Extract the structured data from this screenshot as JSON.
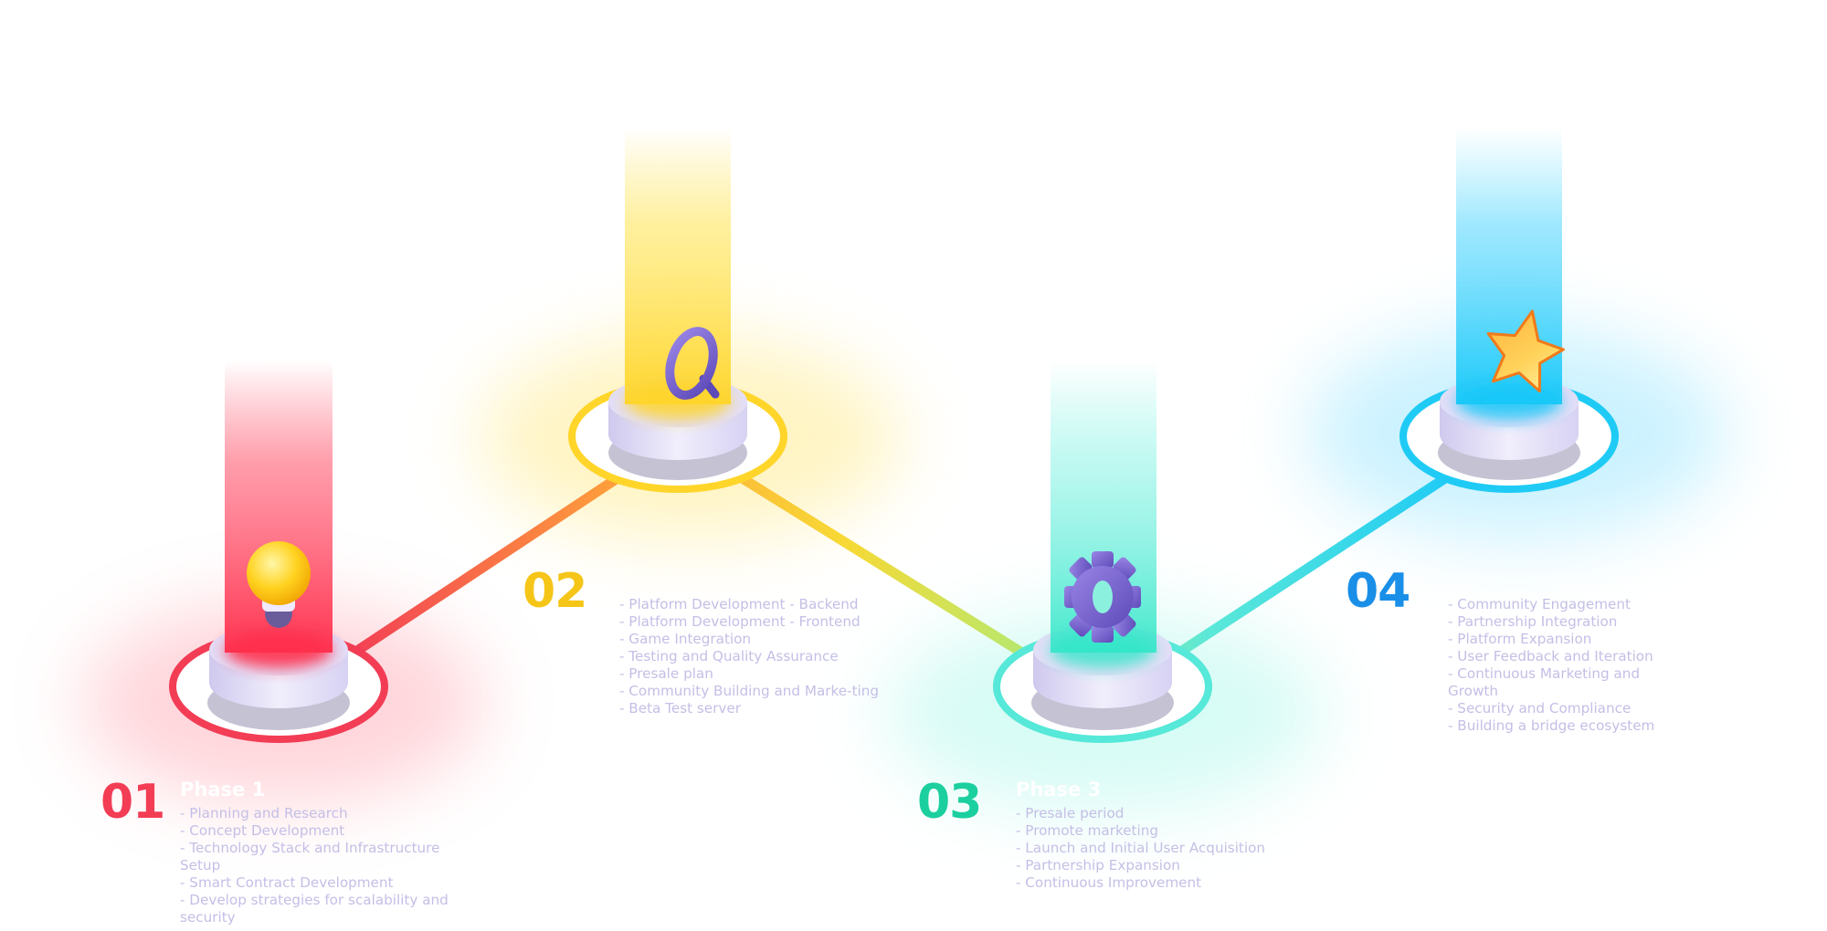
{
  "colors": {
    "phase1": "#f23d55",
    "phase2": "#f5c518",
    "phase3": "#1ccf9f",
    "phase4": "#1a8fe8",
    "text": "#c4bfe6"
  },
  "phases": [
    {
      "number": "01",
      "title": "Phase 1",
      "icon": "lightbulb-icon",
      "items": [
        "- Planning and Research",
        "- Concept Development",
        "- Technology Stack and Infrastructure Setup",
        "- Smart Contract Development",
        "- Develop strategies for scalability and security"
      ]
    },
    {
      "number": "02",
      "title": "",
      "icon": "magnifier-icon",
      "items": [
        "- Platform Development - Backend",
        "- Platform Development - Frontend",
        "- Game Integration",
        "- Testing and Quality Assurance",
        "- Presale plan",
        "- Community Building and Marke-ting",
        "- Beta Test server"
      ]
    },
    {
      "number": "03",
      "title": "Phase 3",
      "icon": "gear-icon",
      "items": [
        "- Presale period",
        "- Promote marketing",
        "- Launch and Initial User Acquisition",
        "- Partnership Expansion",
        "- Continuous Improvement"
      ]
    },
    {
      "number": "04",
      "title": "",
      "icon": "star-icon",
      "items": [
        "- Community Engagement",
        "- Partnership Integration",
        "- Platform Expansion",
        "- User Feedback and Iteration",
        "- Continuous Marketing and Growth",
        "- Security and Compliance",
        "- Building a bridge ecosystem"
      ]
    }
  ]
}
